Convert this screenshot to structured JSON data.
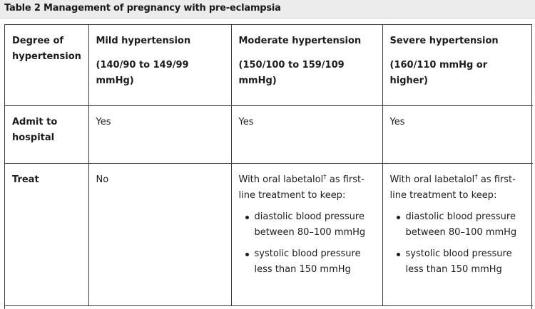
{
  "caption": "Table 2 Management of pregnancy with pre-eclampsia",
  "header": {
    "col0": "Degree of hypertension",
    "mild": {
      "title": "Mild hypertension",
      "range": "(140/90 to 149/99 mmHg)"
    },
    "moderate": {
      "title": "Moderate hypertension",
      "range": "(150/100 to 159/109 mmHg)"
    },
    "severe": {
      "title": "Severe hypertension",
      "range": "(160/110 mmHg or higher)"
    }
  },
  "rows": {
    "admit": {
      "label": "Admit to hospital",
      "mild": "Yes",
      "moderate": "Yes",
      "severe": "Yes"
    },
    "treat": {
      "label": "Treat",
      "mild": "No",
      "moderate": {
        "intro_before": "With oral labetalol",
        "dagger": "†",
        "intro_after": " as first-line treatment to keep:",
        "bullets": [
          "diastolic blood pressure between 80–100 mmHg",
          "systolic blood pressure less than 150 mmHg"
        ]
      },
      "severe": {
        "intro_before": "With oral labetalol",
        "dagger": "†",
        "intro_after": " as first-line treatment to keep:",
        "bullets": [
          "diastolic blood pressure between 80–100 mmHg",
          "systolic blood pressure less than 150 mmHg"
        ]
      }
    }
  }
}
